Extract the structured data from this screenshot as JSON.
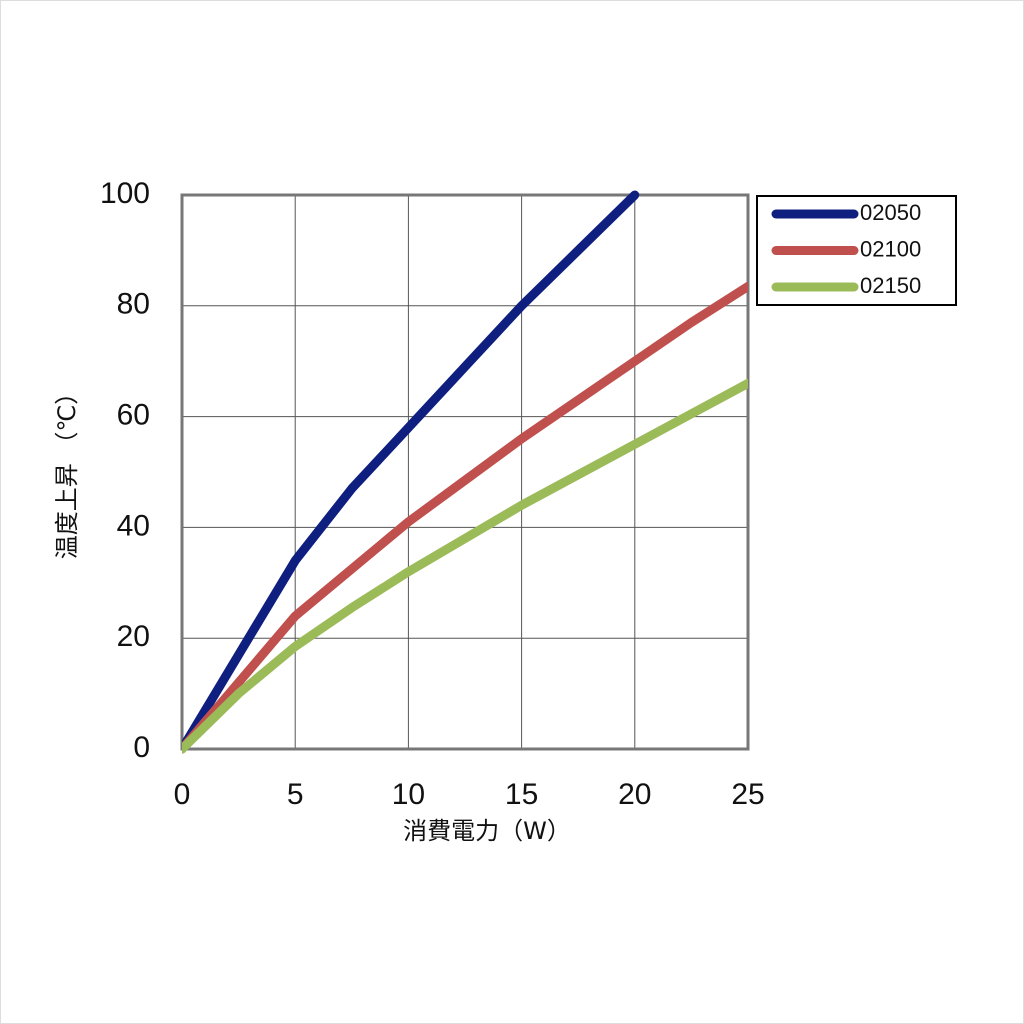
{
  "chart_data": {
    "type": "line",
    "x_label": "消費電力（W）",
    "y_label": "温度上昇 （℃）",
    "x": [
      0,
      2.5,
      5,
      7.5,
      10,
      12.5,
      15,
      17.5,
      20,
      22.5,
      25
    ],
    "series": [
      {
        "name": "02050",
        "color": "#0f1f80",
        "values": [
          0,
          17,
          34,
          47,
          58,
          69,
          80,
          90,
          100,
          null,
          null
        ]
      },
      {
        "name": "02100",
        "color": "#c0504d",
        "values": [
          0,
          12,
          24,
          32.5,
          41,
          48.5,
          56,
          63,
          70,
          77,
          83.5
        ]
      },
      {
        "name": "02150",
        "color": "#9bbb59",
        "values": [
          0,
          10,
          18.5,
          25.5,
          32,
          38,
          44,
          49.5,
          55,
          60.5,
          66
        ]
      }
    ],
    "xlim": [
      0,
      25
    ],
    "xticks": [
      0,
      5,
      10,
      15,
      20,
      25
    ],
    "ylim": [
      0,
      100
    ],
    "yticks": [
      0,
      20,
      40,
      60,
      80,
      100
    ],
    "grid": true,
    "legend": "outside-top-right"
  }
}
